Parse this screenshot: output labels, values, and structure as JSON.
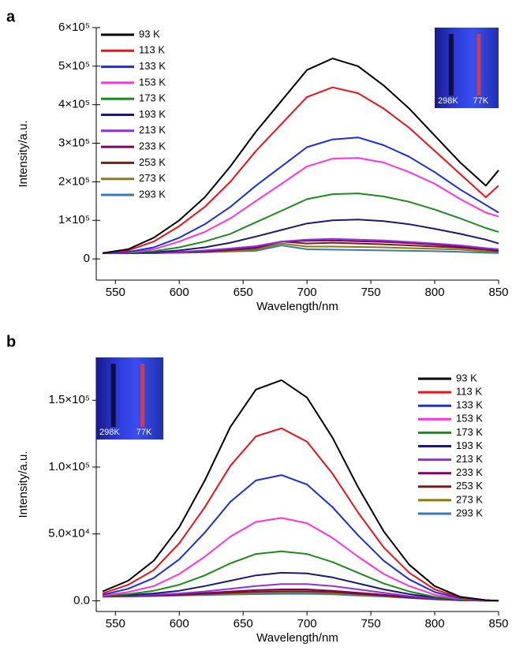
{
  "chart_data": [
    {
      "type": "line",
      "panel_label": "a",
      "x_label": "Wavelength/nm",
      "y_label": "Intensity/a.u.",
      "inset_labels": [
        "298K",
        "77K"
      ],
      "legend": "upper left",
      "xlim": [
        535,
        850
      ],
      "xticks": [
        550,
        600,
        650,
        700,
        750,
        800,
        850
      ],
      "ylim": [
        -55000,
        600000
      ],
      "yticks": [
        {
          "value": 0,
          "label": "0"
        },
        {
          "value": 100000,
          "label": "1×10⁵"
        },
        {
          "value": 200000,
          "label": "2×10⁵"
        },
        {
          "value": 300000,
          "label": "3×10⁵"
        },
        {
          "value": 400000,
          "label": "4×10⁵"
        },
        {
          "value": 500000,
          "label": "5×10⁵"
        },
        {
          "value": 600000,
          "label": "6×10⁵"
        }
      ],
      "x": [
        540,
        560,
        580,
        600,
        620,
        640,
        660,
        680,
        700,
        720,
        740,
        760,
        780,
        800,
        820,
        840,
        850
      ],
      "series": [
        {
          "name": "93 K",
          "color": "#000000",
          "values": [
            15000,
            25000,
            55000,
            100000,
            160000,
            240000,
            330000,
            410000,
            490000,
            520000,
            500000,
            450000,
            390000,
            320000,
            250000,
            190000,
            230000
          ]
        },
        {
          "name": "113 K",
          "color": "#e8141a",
          "values": [
            15000,
            22000,
            45000,
            85000,
            135000,
            200000,
            280000,
            350000,
            420000,
            445000,
            430000,
            390000,
            340000,
            280000,
            220000,
            160000,
            190000
          ]
        },
        {
          "name": "133 K",
          "color": "#1a2de0",
          "values": [
            15000,
            18000,
            30000,
            55000,
            90000,
            135000,
            190000,
            240000,
            290000,
            310000,
            315000,
            295000,
            265000,
            225000,
            180000,
            140000,
            120000
          ]
        },
        {
          "name": "153 K",
          "color": "#ff33dd",
          "values": [
            15000,
            17000,
            25000,
            45000,
            70000,
            105000,
            150000,
            195000,
            240000,
            260000,
            262000,
            250000,
            225000,
            195000,
            155000,
            120000,
            110000
          ]
        },
        {
          "name": "173 K",
          "color": "#1e8a1e",
          "values": [
            15000,
            16000,
            20000,
            30000,
            45000,
            65000,
            95000,
            125000,
            155000,
            168000,
            170000,
            162000,
            148000,
            128000,
            105000,
            80000,
            70000
          ]
        },
        {
          "name": "193 K",
          "color": "#1a1a6e",
          "values": [
            15000,
            15000,
            17000,
            22000,
            30000,
            42000,
            58000,
            75000,
            92000,
            100000,
            102000,
            98000,
            90000,
            78000,
            65000,
            50000,
            40000
          ]
        },
        {
          "name": "213 K",
          "color": "#8833dd",
          "values": [
            15000,
            15000,
            16000,
            18000,
            22000,
            27000,
            33000,
            45000,
            50000,
            52000,
            50000,
            48000,
            44000,
            40000,
            35000,
            28000,
            25000
          ]
        },
        {
          "name": "233 K",
          "color": "#800060",
          "values": [
            15000,
            15000,
            16000,
            17000,
            20000,
            25000,
            30000,
            45000,
            47000,
            48000,
            46000,
            44000,
            41000,
            37000,
            32000,
            27000,
            22000
          ]
        },
        {
          "name": "253 K",
          "color": "#7a1a1a",
          "values": [
            15000,
            15000,
            15000,
            17000,
            19000,
            23000,
            28000,
            45000,
            40000,
            42000,
            40000,
            38000,
            35000,
            32000,
            29000,
            24000,
            20000
          ]
        },
        {
          "name": "273 K",
          "color": "#8a7a10",
          "values": [
            15000,
            15000,
            15000,
            16000,
            18000,
            20000,
            24000,
            40000,
            32000,
            32000,
            31000,
            30000,
            28000,
            26000,
            24000,
            20000,
            18000
          ]
        },
        {
          "name": "293 K",
          "color": "#3a78b8",
          "values": [
            15000,
            15000,
            15000,
            16000,
            17000,
            19000,
            21000,
            35000,
            25000,
            24000,
            23000,
            22000,
            21000,
            20000,
            18000,
            16000,
            15000
          ]
        }
      ]
    },
    {
      "type": "line",
      "panel_label": "b",
      "x_label": "Wavelength/nm",
      "y_label": "Intensity/a.u.",
      "inset_labels": [
        "298K",
        "77K"
      ],
      "legend": "upper right",
      "xlim": [
        535,
        850
      ],
      "xticks": [
        550,
        600,
        650,
        700,
        750,
        800,
        850
      ],
      "ylim": [
        -8000,
        182000
      ],
      "yticks": [
        {
          "value": 0,
          "label": "0.0"
        },
        {
          "value": 50000,
          "label": "5.0×10⁴"
        },
        {
          "value": 100000,
          "label": "1.0×10⁵"
        },
        {
          "value": 150000,
          "label": "1.5×10⁵"
        }
      ],
      "x": [
        540,
        560,
        580,
        600,
        620,
        640,
        660,
        680,
        700,
        720,
        740,
        760,
        780,
        800,
        820,
        840,
        850
      ],
      "series": [
        {
          "name": "93 K",
          "color": "#000000",
          "values": [
            7000,
            15000,
            30000,
            55000,
            90000,
            130000,
            158000,
            165000,
            152000,
            122000,
            85000,
            52000,
            27000,
            11000,
            3000,
            500,
            0
          ]
        },
        {
          "name": "113 K",
          "color": "#e8141a",
          "values": [
            5500,
            12000,
            23000,
            43000,
            70000,
            101000,
            123000,
            129000,
            119000,
            95000,
            66000,
            40000,
            21000,
            8500,
            2500,
            500,
            0
          ]
        },
        {
          "name": "133 K",
          "color": "#1a2de0",
          "values": [
            4500,
            9000,
            17000,
            31000,
            51000,
            74000,
            90000,
            94000,
            87000,
            70000,
            49000,
            30000,
            16000,
            6500,
            2000,
            400,
            0
          ]
        },
        {
          "name": "153 K",
          "color": "#ff33dd",
          "values": [
            4000,
            6500,
            11000,
            20000,
            33000,
            48000,
            59000,
            62000,
            58000,
            47000,
            33000,
            20000,
            11000,
            4500,
            1500,
            300,
            0
          ]
        },
        {
          "name": "173 K",
          "color": "#1e8a1e",
          "values": [
            3800,
            5000,
            7500,
            12000,
            19000,
            28000,
            35000,
            37000,
            35000,
            29000,
            21000,
            13000,
            7000,
            3000,
            1000,
            200,
            0
          ]
        },
        {
          "name": "193 K",
          "color": "#1a1a6e",
          "values": [
            3600,
            4200,
            5500,
            7500,
            11000,
            15000,
            19000,
            21000,
            20500,
            17500,
            13000,
            8500,
            5000,
            2500,
            800,
            200,
            0
          ]
        },
        {
          "name": "213 K",
          "color": "#8833dd",
          "values": [
            3500,
            3800,
            4500,
            5500,
            7000,
            9000,
            11000,
            12500,
            12500,
            11000,
            8500,
            6000,
            3500,
            1800,
            600,
            100,
            0
          ]
        },
        {
          "name": "233 K",
          "color": "#800060",
          "values": [
            3400,
            3600,
            4000,
            4800,
            5800,
            7000,
            8000,
            8500,
            8500,
            7500,
            6000,
            4500,
            2800,
            1500,
            500,
            100,
            0
          ]
        },
        {
          "name": "253 K",
          "color": "#7a1a1a",
          "values": [
            3300,
            3500,
            3800,
            4400,
            5200,
            6000,
            6800,
            7200,
            7200,
            6500,
            5200,
            4000,
            2500,
            1300,
            400,
            100,
            0
          ]
        },
        {
          "name": "273 K",
          "color": "#8a7a10",
          "values": [
            3200,
            3400,
            3700,
            4200,
            4800,
            5400,
            5900,
            6200,
            6200,
            5700,
            4700,
            3600,
            2300,
            1200,
            400,
            100,
            0
          ]
        },
        {
          "name": "293 K",
          "color": "#3a78b8",
          "values": [
            3000,
            3200,
            3500,
            3900,
            4300,
            4700,
            5000,
            5200,
            5200,
            4800,
            4000,
            3200,
            2100,
            1100,
            400,
            100,
            0
          ]
        }
      ]
    }
  ]
}
